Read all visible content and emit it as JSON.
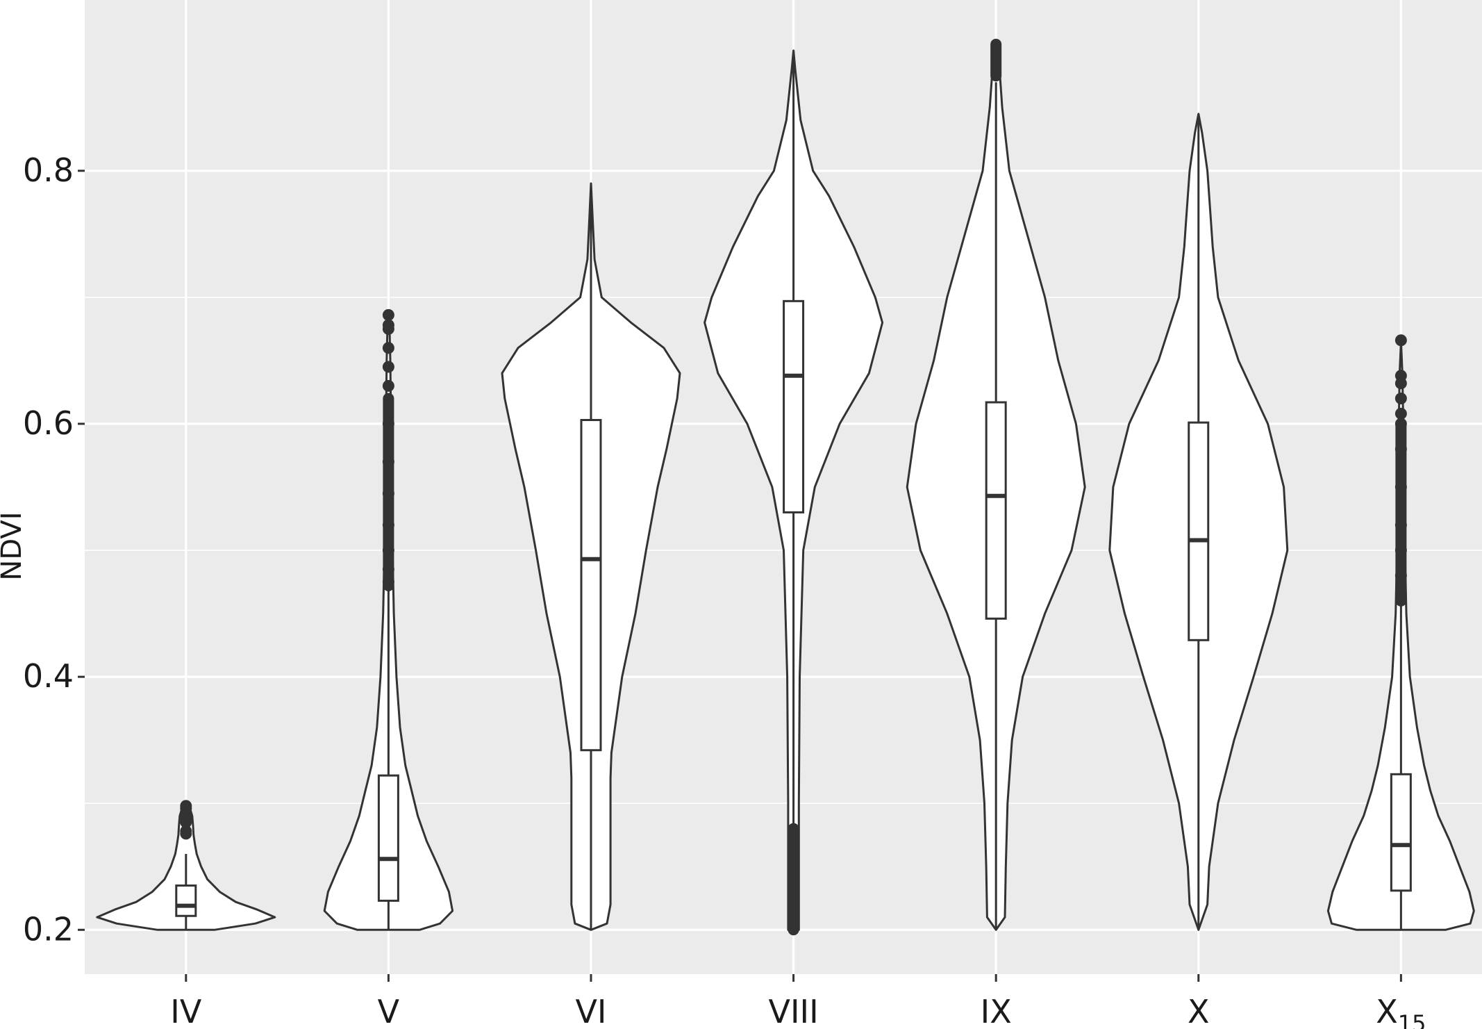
{
  "chart_data": {
    "type": "violin",
    "title": "",
    "xlabel": "",
    "ylabel": "NDVI",
    "ylim": [
      0.165,
      0.935
    ],
    "yticks": [
      0.2,
      0.4,
      0.6,
      0.8
    ],
    "ytick_labels": [
      "0.2",
      "0.4",
      "0.6",
      "0.8"
    ],
    "grid": true,
    "colors": {
      "panel": "#ebebeb",
      "grid": "#ffffff",
      "outline": "#333333",
      "fill": "#ffffff"
    },
    "categories": [
      {
        "label": "IV",
        "sub": ""
      },
      {
        "label": "V",
        "sub": ""
      },
      {
        "label": "VI",
        "sub": ""
      },
      {
        "label": "VIII",
        "sub": ""
      },
      {
        "label": "IX",
        "sub": ""
      },
      {
        "label": "X",
        "sub": ""
      },
      {
        "label": "X",
        "sub": "15"
      }
    ],
    "series": [
      {
        "box": {
          "q1": 0.211,
          "median": 0.219,
          "q3": 0.235,
          "whisker_low": 0.2,
          "whisker_high": 0.26
        },
        "outliers": [
          0.276,
          0.278,
          0.285,
          0.288,
          0.292,
          0.296,
          0.298
        ],
        "outlier_range": null,
        "violin": [
          [
            0.2,
            0.32
          ],
          [
            0.205,
            0.78
          ],
          [
            0.21,
            1.0
          ],
          [
            0.216,
            0.8
          ],
          [
            0.222,
            0.56
          ],
          [
            0.23,
            0.38
          ],
          [
            0.24,
            0.24
          ],
          [
            0.25,
            0.17
          ],
          [
            0.26,
            0.12
          ],
          [
            0.268,
            0.1
          ],
          [
            0.275,
            0.085
          ],
          [
            0.282,
            0.08
          ],
          [
            0.29,
            0.07
          ],
          [
            0.296,
            0.045
          ],
          [
            0.3,
            0.0
          ]
        ]
      },
      {
        "box": {
          "q1": 0.223,
          "median": 0.256,
          "q3": 0.322,
          "whisker_low": 0.2,
          "whisker_high": 0.47
        },
        "outliers": [
          0.475,
          0.485,
          0.5,
          0.52,
          0.545,
          0.57,
          0.6,
          0.63,
          0.645,
          0.66,
          0.675,
          0.678,
          0.686
        ],
        "outlier_range": [
          0.472,
          0.62
        ],
        "violin": [
          [
            0.2,
            0.35
          ],
          [
            0.205,
            0.58
          ],
          [
            0.215,
            0.72
          ],
          [
            0.23,
            0.68
          ],
          [
            0.25,
            0.56
          ],
          [
            0.27,
            0.43
          ],
          [
            0.29,
            0.33
          ],
          [
            0.31,
            0.26
          ],
          [
            0.33,
            0.19
          ],
          [
            0.36,
            0.13
          ],
          [
            0.4,
            0.09
          ],
          [
            0.45,
            0.06
          ],
          [
            0.5,
            0.045
          ],
          [
            0.55,
            0.035
          ],
          [
            0.6,
            0.028
          ],
          [
            0.65,
            0.02
          ],
          [
            0.68,
            0.01
          ],
          [
            0.687,
            0.0
          ]
        ]
      },
      {
        "box": {
          "q1": 0.342,
          "median": 0.493,
          "q3": 0.603,
          "whisker_low": 0.2,
          "whisker_high": 0.79
        },
        "outliers": [],
        "outlier_range": null,
        "violin": [
          [
            0.2,
            0.0
          ],
          [
            0.205,
            0.18
          ],
          [
            0.22,
            0.22
          ],
          [
            0.26,
            0.22
          ],
          [
            0.32,
            0.22
          ],
          [
            0.34,
            0.23
          ],
          [
            0.4,
            0.35
          ],
          [
            0.45,
            0.5
          ],
          [
            0.5,
            0.62
          ],
          [
            0.55,
            0.75
          ],
          [
            0.58,
            0.85
          ],
          [
            0.62,
            0.97
          ],
          [
            0.64,
            1.0
          ],
          [
            0.66,
            0.82
          ],
          [
            0.68,
            0.45
          ],
          [
            0.7,
            0.12
          ],
          [
            0.73,
            0.04
          ],
          [
            0.79,
            0.0
          ]
        ]
      },
      {
        "box": {
          "q1": 0.53,
          "median": 0.638,
          "q3": 0.697,
          "whisker_low": 0.28,
          "whisker_high": 0.895
        },
        "outliers": [],
        "outlier_range": [
          0.2,
          0.28
        ],
        "violin": [
          [
            0.2,
            0.06
          ],
          [
            0.24,
            0.06
          ],
          [
            0.3,
            0.06
          ],
          [
            0.4,
            0.07
          ],
          [
            0.5,
            0.11
          ],
          [
            0.55,
            0.24
          ],
          [
            0.6,
            0.52
          ],
          [
            0.64,
            0.85
          ],
          [
            0.68,
            1.0
          ],
          [
            0.7,
            0.92
          ],
          [
            0.74,
            0.68
          ],
          [
            0.78,
            0.4
          ],
          [
            0.8,
            0.22
          ],
          [
            0.84,
            0.08
          ],
          [
            0.88,
            0.02
          ],
          [
            0.895,
            0.0
          ]
        ]
      },
      {
        "box": {
          "q1": 0.446,
          "median": 0.543,
          "q3": 0.617,
          "whisker_low": 0.2,
          "whisker_high": 0.87
        },
        "outliers": [],
        "outlier_range": [
          0.875,
          0.9
        ],
        "violin": [
          [
            0.2,
            0.0
          ],
          [
            0.21,
            0.1
          ],
          [
            0.25,
            0.11
          ],
          [
            0.3,
            0.13
          ],
          [
            0.35,
            0.18
          ],
          [
            0.4,
            0.3
          ],
          [
            0.45,
            0.55
          ],
          [
            0.5,
            0.85
          ],
          [
            0.55,
            1.0
          ],
          [
            0.6,
            0.9
          ],
          [
            0.65,
            0.7
          ],
          [
            0.7,
            0.55
          ],
          [
            0.75,
            0.35
          ],
          [
            0.8,
            0.15
          ],
          [
            0.85,
            0.07
          ],
          [
            0.88,
            0.04
          ],
          [
            0.9,
            0.0
          ]
        ]
      },
      {
        "box": {
          "q1": 0.429,
          "median": 0.508,
          "q3": 0.601,
          "whisker_low": 0.2,
          "whisker_high": 0.845
        },
        "outliers": [],
        "outlier_range": null,
        "violin": [
          [
            0.2,
            0.0
          ],
          [
            0.22,
            0.1
          ],
          [
            0.25,
            0.12
          ],
          [
            0.3,
            0.22
          ],
          [
            0.35,
            0.4
          ],
          [
            0.4,
            0.62
          ],
          [
            0.45,
            0.83
          ],
          [
            0.5,
            1.0
          ],
          [
            0.55,
            0.96
          ],
          [
            0.6,
            0.78
          ],
          [
            0.65,
            0.45
          ],
          [
            0.7,
            0.22
          ],
          [
            0.74,
            0.16
          ],
          [
            0.76,
            0.14
          ],
          [
            0.8,
            0.1
          ],
          [
            0.83,
            0.04
          ],
          [
            0.845,
            0.0
          ]
        ]
      },
      {
        "box": {
          "q1": 0.231,
          "median": 0.267,
          "q3": 0.323,
          "whisker_low": 0.2,
          "whisker_high": 0.46
        },
        "outliers": [
          0.465,
          0.48,
          0.5,
          0.52,
          0.55,
          0.58,
          0.6,
          0.608,
          0.62,
          0.632,
          0.638,
          0.666
        ],
        "outlier_range": [
          0.46,
          0.6
        ],
        "violin": [
          [
            0.2,
            0.5
          ],
          [
            0.205,
            0.78
          ],
          [
            0.215,
            0.82
          ],
          [
            0.23,
            0.77
          ],
          [
            0.25,
            0.66
          ],
          [
            0.27,
            0.55
          ],
          [
            0.29,
            0.42
          ],
          [
            0.31,
            0.33
          ],
          [
            0.33,
            0.26
          ],
          [
            0.36,
            0.18
          ],
          [
            0.4,
            0.1
          ],
          [
            0.45,
            0.06
          ],
          [
            0.5,
            0.045
          ],
          [
            0.55,
            0.035
          ],
          [
            0.6,
            0.025
          ],
          [
            0.64,
            0.015
          ],
          [
            0.665,
            0.0
          ]
        ]
      }
    ]
  }
}
